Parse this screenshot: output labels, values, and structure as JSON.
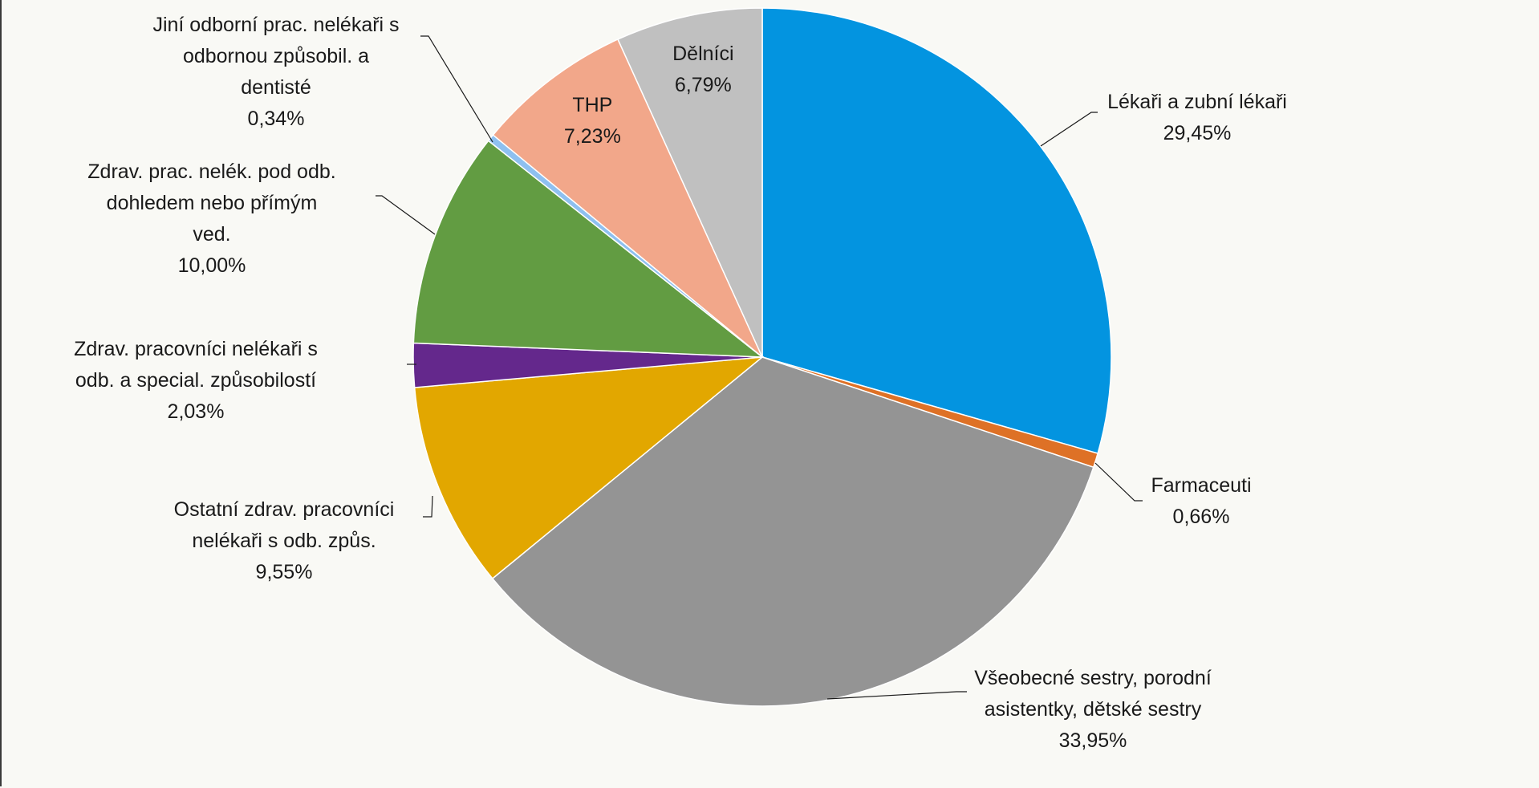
{
  "chart_data": {
    "type": "pie",
    "title": "",
    "start_angle_deg": 0,
    "direction": "clockwise",
    "slices": [
      {
        "label_lines": [
          "Lékaři a zubní lékaři"
        ],
        "value_text": "29,45%",
        "value": 29.45,
        "color": "#0394e0"
      },
      {
        "label_lines": [
          "Farmaceuti"
        ],
        "value_text": "0,66%",
        "value": 0.66,
        "color": "#de7126"
      },
      {
        "label_lines": [
          "Všeobecné sestry, porodní",
          "asistentky, dětské sestry"
        ],
        "value_text": "33,95%",
        "value": 33.95,
        "color": "#949494"
      },
      {
        "label_lines": [
          "Ostatní zdrav. pracovníci",
          "nelékaři s odb. způs."
        ],
        "value_text": "9,55%",
        "value": 9.55,
        "color": "#e2a700"
      },
      {
        "label_lines": [
          "Zdrav. pracovníci nelékaři s",
          "odb. a special. způsobilostí"
        ],
        "value_text": "2,03%",
        "value": 2.03,
        "color": "#64288c"
      },
      {
        "label_lines": [
          "Zdrav. prac. nelék. pod odb.",
          "dohledem nebo přímým",
          "ved."
        ],
        "value_text": "10,00%",
        "value": 10.0,
        "color": "#629c42"
      },
      {
        "label_lines": [
          "Jiní odborní prac. nelékaři s",
          "odbornou způsobil. a",
          "dentisté"
        ],
        "value_text": "0,34%",
        "value": 0.34,
        "color": "#8ec0f0"
      },
      {
        "label_lines": [
          "THP"
        ],
        "value_text": "7,23%",
        "value": 7.23,
        "color": "#f2a78a"
      },
      {
        "label_lines": [
          "Dělníci"
        ],
        "value_text": "6,79%",
        "value": 6.79,
        "color": "#c0c0c0"
      }
    ]
  }
}
